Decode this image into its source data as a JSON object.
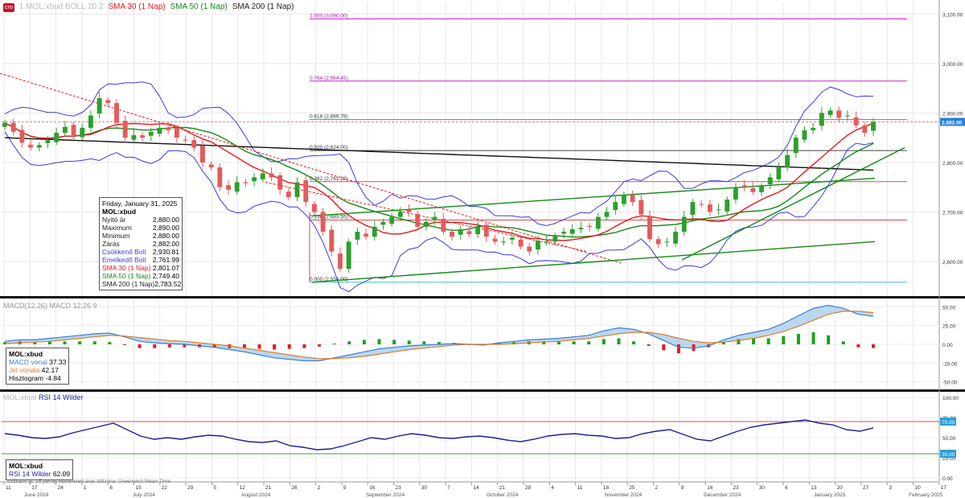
{
  "legend_top": {
    "tag": "cro",
    "faded_text": "1 MOL:xbud BOLL 20 2",
    "sma30_label": "SMA 30 (1 Nap)",
    "sma50_label": "SMA 50 (1 Nap)",
    "sma200_label": "SMA 200 (1 Nap)"
  },
  "colors": {
    "candle_up": "#2ca02c",
    "candle_down": "#e35b5b",
    "bollinger": "#3a3ae6",
    "sma30": "#e31a1c",
    "sma50": "#138a13",
    "sma200": "#111111",
    "fib": "#cc22cc",
    "trend_red": "#e31a1c",
    "trend_green": "#138a13",
    "macd_line": "#3a7fd0",
    "signal_line": "#e07b2a",
    "rsi_line": "#1a1f9c"
  },
  "info_box": {
    "date": "Friday, January 31, 2025",
    "symbol": "MOL:xbud",
    "rows": [
      {
        "label": "Nyitó ár",
        "value": "2,880.00",
        "color": "#222"
      },
      {
        "label": "Maximum",
        "value": "2,890.00",
        "color": "#222"
      },
      {
        "label": "Minimum",
        "value": "2,880.00",
        "color": "#222"
      },
      {
        "label": "Zárás",
        "value": "2,882.00",
        "color": "#222"
      },
      {
        "label": "Csökkenő Boll",
        "value": "2,930.81",
        "color": "#3a3ae6"
      },
      {
        "label": "Emelkedő Boll",
        "value": "2,761.99",
        "color": "#3a3ae6"
      },
      {
        "label": "SMA 30 (1 Nap)",
        "value": "2,801.07",
        "color": "#e31a1c"
      },
      {
        "label": "SMA 50 (1 Nap)",
        "value": "2,749.40",
        "color": "#138a13"
      },
      {
        "label": "SMA 200 (1 Nap)",
        "value": "2,783.52",
        "color": "#222"
      }
    ]
  },
  "macd_box": {
    "symbol": "MOL:xbud",
    "macd_label": "MACD vonal",
    "macd_value": "37.33",
    "signal_label": "Jel vonala",
    "signal_value": "42.17",
    "hist_label": "Hisztogram",
    "hist_value": "-4.84"
  },
  "rsi_box": {
    "symbol": "MOL:xbud",
    "rsi_label": "RSI 14 Wilder",
    "rsi_value": "62.09"
  },
  "panel_titles": {
    "macd_faded": "MACD(12,26) MACD 12,26 9",
    "rsi_faded": "MOL:xbud",
    "rsi_title": "RSI 14 Wilder"
  },
  "footnote": "Indikatív ár, 15 percet késleltetett árak    Időzóna: Greenwich Mean Time",
  "x_axis": {
    "day_ticks": [
      "11",
      "17",
      "24",
      "1",
      "8",
      "15",
      "22",
      "29",
      "5",
      "12",
      "21",
      "26",
      "2",
      "9",
      "16",
      "23",
      "30",
      "7",
      "14",
      "21",
      "28",
      "4",
      "11",
      "18",
      "25",
      "2",
      "9",
      "16",
      "23",
      "30",
      "6",
      "13",
      "20",
      "27",
      "3",
      "10",
      "17"
    ],
    "months": [
      "June 2024",
      "July 2024",
      "August 2024",
      "September 2024",
      "October 2024",
      "November 2024",
      "December 2024",
      "January 2025",
      "February 2025"
    ]
  },
  "chart_data": [
    {
      "type": "candlestick",
      "title": "MOL:xbud",
      "y_ticks": [
        "3,100.00",
        "3,000.00",
        "2,900.00",
        "2,800.00",
        "2,700.00",
        "2,600.00"
      ],
      "ylim": [
        2530,
        3125
      ],
      "last_price_label": "2,882.00",
      "fib_levels": [
        {
          "label": "1.000 (3,090.00)",
          "value": 3090
        },
        {
          "label": "0.764 (2,964.45)",
          "value": 2964.45
        },
        {
          "label": "0.618 (2,886.78)",
          "value": 2886.78
        },
        {
          "label": "0.500 (2,824.00)",
          "value": 2824
        },
        {
          "label": "0.382 (2,761.22)",
          "value": 2761.22
        },
        {
          "label": "0.236 (2,683.55)",
          "value": 2683.55
        },
        {
          "label": "0.000 (2,558.00)",
          "value": 2558
        }
      ],
      "close": [
        2880,
        2862,
        2840,
        2830,
        2835,
        2845,
        2860,
        2872,
        2855,
        2870,
        2895,
        2930,
        2920,
        2880,
        2850,
        2855,
        2850,
        2862,
        2870,
        2865,
        2850,
        2845,
        2830,
        2800,
        2790,
        2750,
        2745,
        2760,
        2758,
        2770,
        2778,
        2770,
        2745,
        2730,
        2760,
        2720,
        2700,
        2660,
        2620,
        2585,
        2640,
        2660,
        2650,
        2670,
        2680,
        2690,
        2700,
        2700,
        2670,
        2680,
        2690,
        2660,
        2650,
        2665,
        2655,
        2670,
        2650,
        2640,
        2640,
        2648,
        2630,
        2620,
        2642,
        2640,
        2652,
        2660,
        2665,
        2668,
        2670,
        2690,
        2700,
        2720,
        2735,
        2720,
        2695,
        2645,
        2635,
        2640,
        2660,
        2690,
        2720,
        2715,
        2700,
        2705,
        2725,
        2750,
        2752,
        2740,
        2752,
        2770,
        2790,
        2815,
        2850,
        2865,
        2870,
        2900,
        2905,
        2890,
        2895,
        2875,
        2860,
        2882
      ],
      "series": [
        {
          "name": "SMA 30 (1 Nap)",
          "last": 2801.07
        },
        {
          "name": "SMA 50 (1 Nap)",
          "last": 2749.4
        },
        {
          "name": "SMA 200 (1 Nap)",
          "last": 2783.52
        },
        {
          "name": "Csökkenő Boll",
          "last": 2930.81
        },
        {
          "name": "Emelkedő Boll",
          "last": 2761.99
        }
      ]
    },
    {
      "type": "macd",
      "y_ticks": [
        "50.00",
        "25.00",
        "0.00",
        "-25.00",
        "-50.00"
      ],
      "ylim": [
        -60,
        60
      ],
      "macd": [
        4,
        6,
        6,
        8,
        10,
        12,
        14,
        15,
        10,
        4,
        2,
        1,
        0,
        -2,
        -4,
        -7,
        -10,
        -14,
        -18,
        -20,
        -22,
        -22,
        -18,
        -14,
        -10,
        -6,
        -4,
        -2,
        -1,
        0,
        1,
        0,
        -1,
        2,
        4,
        6,
        7,
        8,
        10,
        12,
        18,
        22,
        20,
        14,
        5,
        -4,
        -5,
        -2,
        6,
        12,
        16,
        20,
        28,
        38,
        48,
        52,
        48,
        40,
        37.33
      ],
      "signal": [
        1,
        2,
        3,
        4,
        6,
        8,
        10,
        12,
        11,
        9,
        7,
        5,
        4,
        2,
        0,
        -2,
        -5,
        -8,
        -11,
        -14,
        -17,
        -19,
        -19,
        -18,
        -16,
        -13,
        -10,
        -7,
        -5,
        -3,
        -1,
        0,
        0,
        0,
        1,
        2,
        3,
        4,
        6,
        8,
        11,
        14,
        16,
        16,
        13,
        8,
        4,
        2,
        3,
        5,
        8,
        12,
        17,
        24,
        32,
        40,
        44,
        44,
        42.17
      ],
      "histogram": [
        3,
        4,
        3,
        4,
        4,
        4,
        4,
        3,
        -1,
        -5,
        -5,
        -4,
        -4,
        -4,
        -4,
        -5,
        -5,
        -6,
        -7,
        -6,
        -5,
        -3,
        1,
        4,
        6,
        7,
        6,
        5,
        4,
        3,
        2,
        0,
        -1,
        2,
        3,
        4,
        4,
        4,
        4,
        4,
        7,
        8,
        4,
        -2,
        -8,
        -12,
        -9,
        -4,
        3,
        7,
        8,
        8,
        11,
        14,
        16,
        12,
        4,
        -4,
        -4.84
      ]
    },
    {
      "type": "line",
      "title": "RSI 14 Wilder",
      "y_ticks": [
        "100.00",
        "75.00",
        "50.00",
        "25.00",
        "0.00"
      ],
      "ylim": [
        0,
        100
      ],
      "reference_lines": [
        {
          "value": 70,
          "label": "70.00"
        },
        {
          "value": 30,
          "label": "30.00"
        }
      ],
      "values": [
        55,
        53,
        50,
        49,
        51,
        56,
        60,
        64,
        68,
        60,
        52,
        48,
        50,
        48,
        51,
        53,
        52,
        48,
        45,
        44,
        46,
        40,
        38,
        35,
        36,
        40,
        45,
        50,
        48,
        52,
        55,
        53,
        50,
        49,
        51,
        52,
        50,
        47,
        45,
        48,
        52,
        54,
        55,
        53,
        52,
        49,
        50,
        55,
        58,
        60,
        54,
        48,
        46,
        52,
        58,
        63,
        66,
        68,
        70,
        72,
        68,
        66,
        60,
        58,
        62.09
      ]
    }
  ]
}
